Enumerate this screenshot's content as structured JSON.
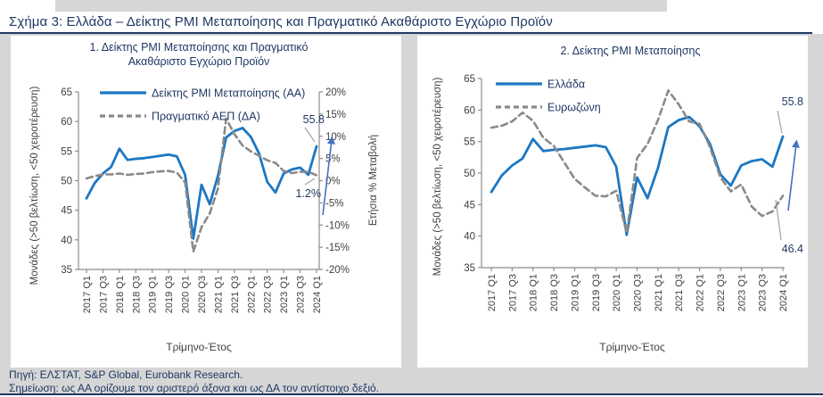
{
  "page": {
    "title": "Σχήμα 3: Ελλάδα – Δείκτης PMI Μεταποίησης και Πραγματικό Ακαθάριστο Εγχώριο Προϊόν",
    "footer": {
      "source": "Πηγή: ΕΛΣΤΑΤ, S&P Global, Eurobank Research.",
      "note": "Σημείωση: ως ΑΑ ορίζουμε τον αριστερό άξονα και ως ΔΑ τον αντίστοιχο δεξιό."
    },
    "colors": {
      "navy_text": "#1f3864",
      "accent_blue": "#1c77c3",
      "gray_series": "#8a8a8a",
      "arrow_blue": "#4472c4",
      "axis_line": "#8c8c8c",
      "axis_text": "#404040",
      "leader_line": "#a6a6a6",
      "page_gray": "#d6d6d6"
    }
  },
  "chart_data": [
    {
      "type": "line",
      "panel": "left",
      "title": "1. Δείκτης PMI Μεταποίησης και Πραγματικό Ακαθάριστο Εγχώριο Προϊόν",
      "title_lines": [
        "1. Δείκτης PMI Μεταποίησης και Πραγματικό",
        "Ακαθάριστο Εγχώριο Προϊόν"
      ],
      "xlabel": "Τρίμηνο-Έτος",
      "x": [
        "2017 Q1",
        "2017 Q2",
        "2017 Q3",
        "2017 Q4",
        "2018 Q1",
        "2018 Q2",
        "2018 Q3",
        "2018 Q4",
        "2019 Q1",
        "2019 Q2",
        "2019 Q3",
        "2019 Q4",
        "2020 Q1",
        "2020 Q2",
        "2020 Q3",
        "2020 Q4",
        "2021 Q1",
        "2021 Q2",
        "2021 Q3",
        "2021 Q4",
        "2022 Q1",
        "2022 Q2",
        "2022 Q3",
        "2022 Q4",
        "2023 Q1",
        "2023 Q2",
        "2023 Q3",
        "2023 Q4",
        "2024 Q1"
      ],
      "x_tick_labels": [
        "2017 Q1",
        "2017 Q3",
        "2018 Q1",
        "2018 Q3",
        "2019 Q1",
        "2019 Q3",
        "2020 Q1",
        "2020 Q3",
        "2021 Q1",
        "2021 Q3",
        "2022 Q1",
        "2022 Q3",
        "2023 Q1",
        "2023 Q3",
        "2024 Q1"
      ],
      "left_axis": {
        "label": "Μονάδες (>50 βελτίωση, <50 χειροτέρευση)",
        "min": 35,
        "max": 65,
        "step": 5
      },
      "right_axis": {
        "label": "Ετήσια % Μεταβολή",
        "min": -20,
        "max": 20,
        "step": 5,
        "suffix": "%"
      },
      "grid": false,
      "legend_position": "top-left-inside",
      "series": [
        {
          "name": "Δείκτης PMI Μεταποίησης (ΑΑ)",
          "axis": "left",
          "line": "solid",
          "color": "#1c77c3",
          "values": [
            47.0,
            49.6,
            51.2,
            52.3,
            55.4,
            53.5,
            53.7,
            53.8,
            54.0,
            54.2,
            54.4,
            54.1,
            51.0,
            40.2,
            49.3,
            46.0,
            50.8,
            57.3,
            58.4,
            58.9,
            57.4,
            54.6,
            49.8,
            48.0,
            51.2,
            51.9,
            52.2,
            51.0,
            55.8
          ]
        },
        {
          "name": "Πραγματικό ΑΕΠ (ΔΑ)",
          "axis": "right",
          "line": "dashed",
          "color": "#8a8a8a",
          "values": [
            0.5,
            1.0,
            1.4,
            1.4,
            1.6,
            1.3,
            1.5,
            1.6,
            1.9,
            2.1,
            2.2,
            1.8,
            -0.4,
            -16.0,
            -10.5,
            -7.4,
            -1.8,
            14.0,
            10.5,
            7.9,
            6.6,
            5.6,
            4.6,
            4.0,
            2.2,
            1.7,
            2.0,
            2.0,
            1.2
          ]
        }
      ],
      "annotations": [
        {
          "text": "55.8",
          "series": 0
        },
        {
          "text": "1.2%",
          "series": 1
        }
      ],
      "end_arrow": true
    },
    {
      "type": "line",
      "panel": "right",
      "title": "2. Δείκτης PMI Μεταποίησης",
      "title_lines": [
        "2. Δείκτης PMI Μεταποίησης"
      ],
      "xlabel": "Τρίμηνο-Έτος",
      "x": [
        "2017 Q1",
        "2017 Q2",
        "2017 Q3",
        "2017 Q4",
        "2018 Q1",
        "2018 Q2",
        "2018 Q3",
        "2018 Q4",
        "2019 Q1",
        "2019 Q2",
        "2019 Q3",
        "2019 Q4",
        "2020 Q1",
        "2020 Q2",
        "2020 Q3",
        "2020 Q4",
        "2021 Q1",
        "2021 Q2",
        "2021 Q3",
        "2021 Q4",
        "2022 Q1",
        "2022 Q2",
        "2022 Q3",
        "2022 Q4",
        "2023 Q1",
        "2023 Q2",
        "2023 Q3",
        "2023 Q4",
        "2024 Q1"
      ],
      "x_tick_labels": [
        "2017 Q1",
        "2017 Q3",
        "2018 Q1",
        "2018 Q3",
        "2019 Q1",
        "2019 Q3",
        "2020 Q1",
        "2020 Q3",
        "2021 Q1",
        "2021 Q3",
        "2022 Q1",
        "2022 Q3",
        "2023 Q1",
        "2023 Q3",
        "2024 Q1"
      ],
      "left_axis": {
        "label": "Μονάδες (>50 βελτίωση, <50 χειροτέρευση)",
        "min": 35,
        "max": 65,
        "step": 5
      },
      "grid": false,
      "legend_position": "top-left-inside",
      "series": [
        {
          "name": "Ελλάδα",
          "axis": "left",
          "line": "solid",
          "color": "#1c77c3",
          "values": [
            47.0,
            49.6,
            51.2,
            52.3,
            55.4,
            53.5,
            53.7,
            53.8,
            54.0,
            54.2,
            54.4,
            54.1,
            51.0,
            40.2,
            49.3,
            46.0,
            50.8,
            57.3,
            58.4,
            58.9,
            57.4,
            54.6,
            49.8,
            48.0,
            51.2,
            51.9,
            52.2,
            51.0,
            55.8
          ]
        },
        {
          "name": "Ευρωζώνη",
          "axis": "left",
          "line": "dashed",
          "color": "#8a8a8a",
          "values": [
            57.2,
            57.5,
            58.2,
            59.6,
            58.3,
            55.6,
            54.3,
            51.7,
            49.1,
            47.7,
            46.4,
            46.3,
            47.2,
            40.5,
            52.4,
            54.6,
            58.4,
            63.1,
            60.9,
            58.2,
            57.8,
            54.1,
            49.3,
            47.1,
            48.2,
            44.7,
            43.2,
            43.9,
            46.4
          ]
        }
      ],
      "annotations": [
        {
          "text": "55.8",
          "series": 0
        },
        {
          "text": "46.4",
          "series": 1
        }
      ],
      "end_arrow": true
    }
  ]
}
